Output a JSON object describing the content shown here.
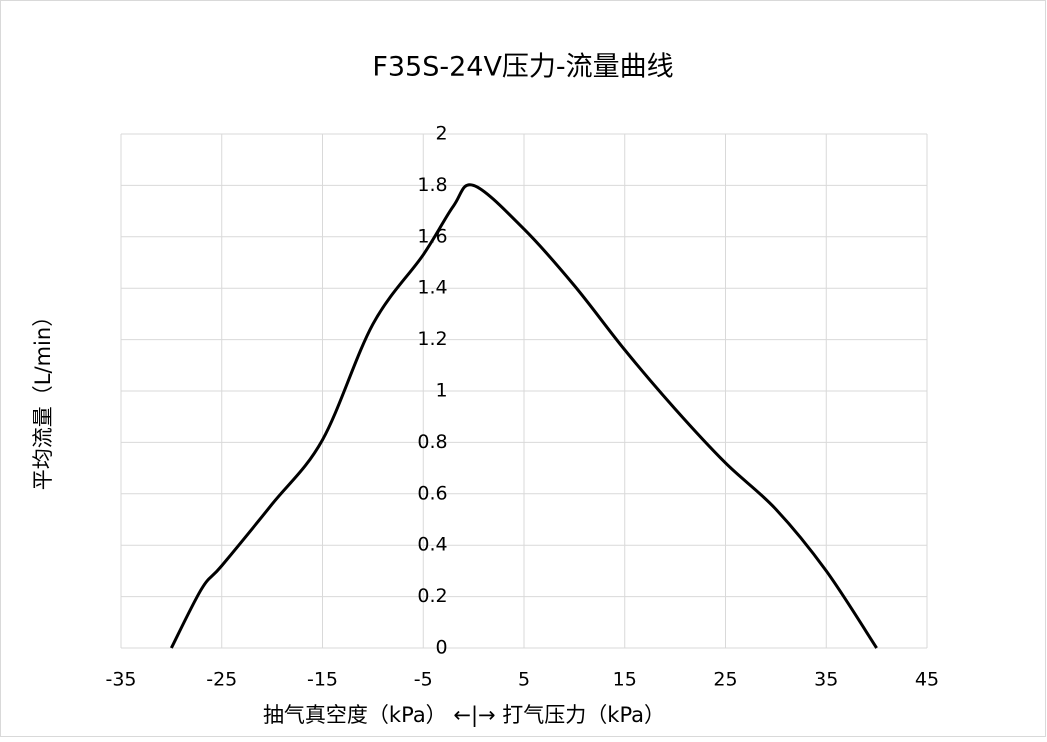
{
  "chart_data": {
    "type": "line",
    "title": "F35S-24V压力-流量曲线",
    "x_label": "抽气真空度（kPa）  ←|→  打气压力（kPa）",
    "y_label": "平均流量（L/min）",
    "x": [
      -30,
      -27,
      -25,
      -20,
      -15,
      -10,
      -5,
      -2,
      0,
      5,
      10,
      15,
      20,
      25,
      30,
      35,
      40
    ],
    "series": [
      {
        "name": "平均流量",
        "color": "#000000",
        "values": [
          0,
          0.23,
          0.32,
          0.56,
          0.81,
          1.26,
          1.53,
          1.72,
          1.8,
          1.63,
          1.41,
          1.16,
          0.93,
          0.72,
          0.54,
          0.3,
          0
        ]
      }
    ],
    "xlim": [
      -35,
      45
    ],
    "xticks": [
      -35,
      -25,
      -15,
      -5,
      5,
      15,
      25,
      35,
      45
    ],
    "ylim": [
      0,
      2
    ],
    "yticks": [
      0,
      0.2,
      0.4,
      0.6,
      0.8,
      1,
      1.2,
      1.4,
      1.6,
      1.8,
      2
    ],
    "grid": true
  }
}
